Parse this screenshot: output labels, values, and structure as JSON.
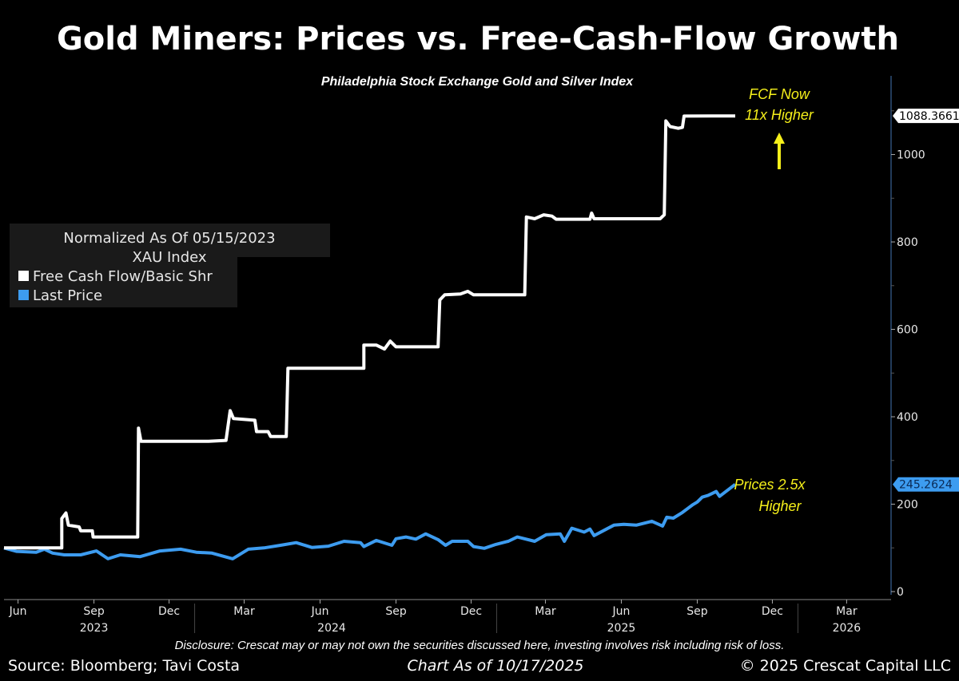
{
  "chart_data": {
    "type": "line",
    "title": "Gold Miners: Prices vs. Free-Cash-Flow Growth",
    "subtitle": "Philadelphia Stock Exchange Gold and Silver Index",
    "legend": {
      "placement": "left",
      "header_1": "Normalized As Of 05/15/2023",
      "header_2": "XAU Index"
    },
    "xlim": [
      "2023-05-15",
      "2026-04-19"
    ],
    "ylim": [
      0,
      1180
    ],
    "grid": false,
    "y_ticks": [
      0,
      200,
      400,
      600,
      800,
      1000
    ],
    "y_tick_labels": [
      "0",
      "200",
      "400",
      "600",
      "800",
      "1000"
    ],
    "x_ticks": [
      {
        "label": "Jun",
        "date": "2023-06-01"
      },
      {
        "label": "Sep",
        "date": "2023-09-01"
      },
      {
        "label": "Dec",
        "date": "2023-12-01"
      },
      {
        "label": "Mar",
        "date": "2024-03-01"
      },
      {
        "label": "Jun",
        "date": "2024-06-01"
      },
      {
        "label": "Sep",
        "date": "2024-09-01"
      },
      {
        "label": "Dec",
        "date": "2024-12-01"
      },
      {
        "label": "Mar",
        "date": "2025-03-01"
      },
      {
        "label": "Jun",
        "date": "2025-06-01"
      },
      {
        "label": "Sep",
        "date": "2025-09-01"
      },
      {
        "label": "Dec",
        "date": "2025-12-01"
      },
      {
        "label": "Mar",
        "date": "2026-03-01"
      }
    ],
    "year_labels": [
      {
        "label": "2023",
        "date": "2023-09-01"
      },
      {
        "label": "2024",
        "date": "2024-06-15"
      },
      {
        "label": "2025",
        "date": "2025-06-01"
      },
      {
        "label": "2026",
        "date": "2026-03-01"
      }
    ],
    "year_boundaries": [
      "2024-01-01",
      "2025-01-01",
      "2026-01-01"
    ],
    "series": [
      {
        "name": "Free Cash Flow/Basic Shr",
        "color": "#ffffff",
        "last_value_label": "1088.3661",
        "points": [
          [
            "2023-05-15",
            100
          ],
          [
            "2023-07-24",
            100
          ],
          [
            "2023-07-24",
            167
          ],
          [
            "2023-07-29",
            180
          ],
          [
            "2023-08-01",
            152
          ],
          [
            "2023-08-14",
            148
          ],
          [
            "2023-08-16",
            139
          ],
          [
            "2023-08-30",
            139
          ],
          [
            "2023-08-31",
            125
          ],
          [
            "2023-10-24",
            125
          ],
          [
            "2023-10-25",
            374
          ],
          [
            "2023-10-28",
            344
          ],
          [
            "2024-01-18",
            344
          ],
          [
            "2024-02-08",
            346
          ],
          [
            "2024-02-13",
            414
          ],
          [
            "2024-02-17",
            396
          ],
          [
            "2024-03-14",
            392
          ],
          [
            "2024-03-16",
            366
          ],
          [
            "2024-03-30",
            366
          ],
          [
            "2024-04-02",
            355
          ],
          [
            "2024-04-21",
            355
          ],
          [
            "2024-04-23",
            511
          ],
          [
            "2024-07-24",
            511
          ],
          [
            "2024-07-24",
            564
          ],
          [
            "2024-08-08",
            564
          ],
          [
            "2024-08-18",
            555
          ],
          [
            "2024-08-25",
            573
          ],
          [
            "2024-09-01",
            560
          ],
          [
            "2024-10-22",
            560
          ],
          [
            "2024-10-24",
            667
          ],
          [
            "2024-10-30",
            679
          ],
          [
            "2024-11-18",
            681
          ],
          [
            "2024-11-27",
            687
          ],
          [
            "2024-12-04",
            679
          ],
          [
            "2025-02-04",
            679
          ],
          [
            "2025-02-06",
            857
          ],
          [
            "2025-02-16",
            853
          ],
          [
            "2025-02-27",
            862
          ],
          [
            "2025-03-09",
            859
          ],
          [
            "2025-03-14",
            852
          ],
          [
            "2025-04-24",
            852
          ],
          [
            "2025-04-26",
            866
          ],
          [
            "2025-04-29",
            853
          ],
          [
            "2025-07-18",
            853
          ],
          [
            "2025-07-23",
            862
          ],
          [
            "2025-07-25",
            1077
          ],
          [
            "2025-07-30",
            1064
          ],
          [
            "2025-08-09",
            1060
          ],
          [
            "2025-08-14",
            1062
          ],
          [
            "2025-08-16",
            1088
          ],
          [
            "2025-10-17",
            1088.3661
          ]
        ]
      },
      {
        "name": "Last Price",
        "color": "#3d9cf0",
        "last_value_label": "245.2624",
        "points": [
          [
            "2023-05-15",
            100
          ],
          [
            "2023-05-30",
            92
          ],
          [
            "2023-06-23",
            90
          ],
          [
            "2023-07-03",
            97
          ],
          [
            "2023-07-13",
            88
          ],
          [
            "2023-07-27",
            84
          ],
          [
            "2023-08-16",
            84
          ],
          [
            "2023-09-04",
            93
          ],
          [
            "2023-09-18",
            75
          ],
          [
            "2023-10-03",
            84
          ],
          [
            "2023-10-27",
            80
          ],
          [
            "2023-11-20",
            93
          ],
          [
            "2023-12-15",
            97
          ],
          [
            "2024-01-03",
            90
          ],
          [
            "2024-01-22",
            88
          ],
          [
            "2024-02-16",
            75
          ],
          [
            "2024-03-06",
            97
          ],
          [
            "2024-03-25",
            100
          ],
          [
            "2024-04-14",
            106
          ],
          [
            "2024-05-03",
            112
          ],
          [
            "2024-05-22",
            101
          ],
          [
            "2024-06-11",
            104
          ],
          [
            "2024-06-30",
            115
          ],
          [
            "2024-07-20",
            112
          ],
          [
            "2024-07-24",
            103
          ],
          [
            "2024-08-08",
            117
          ],
          [
            "2024-08-27",
            106
          ],
          [
            "2024-09-01",
            121
          ],
          [
            "2024-09-13",
            125
          ],
          [
            "2024-09-25",
            120
          ],
          [
            "2024-10-07",
            132
          ],
          [
            "2024-10-22",
            119
          ],
          [
            "2024-10-31",
            106
          ],
          [
            "2024-11-08",
            115
          ],
          [
            "2024-11-27",
            115
          ],
          [
            "2024-12-04",
            103
          ],
          [
            "2024-12-17",
            99
          ],
          [
            "2024-12-31",
            108
          ],
          [
            "2025-01-15",
            115
          ],
          [
            "2025-01-26",
            125
          ],
          [
            "2025-02-16",
            115
          ],
          [
            "2025-03-02",
            130
          ],
          [
            "2025-03-19",
            132
          ],
          [
            "2025-03-24",
            115
          ],
          [
            "2025-04-02",
            145
          ],
          [
            "2025-04-17",
            136
          ],
          [
            "2025-04-24",
            143
          ],
          [
            "2025-04-29",
            128
          ],
          [
            "2025-05-14",
            143
          ],
          [
            "2025-05-23",
            152
          ],
          [
            "2025-06-04",
            154
          ],
          [
            "2025-06-19",
            152
          ],
          [
            "2025-07-08",
            161
          ],
          [
            "2025-07-21",
            150
          ],
          [
            "2025-07-26",
            170
          ],
          [
            "2025-08-03",
            168
          ],
          [
            "2025-08-14",
            181
          ],
          [
            "2025-08-26",
            198
          ],
          [
            "2025-09-01",
            205
          ],
          [
            "2025-09-07",
            216
          ],
          [
            "2025-09-14",
            220
          ],
          [
            "2025-09-24",
            229
          ],
          [
            "2025-09-28",
            218
          ],
          [
            "2025-10-17",
            245.2624
          ]
        ]
      }
    ],
    "annotations": {
      "fcf_line1": "FCF Now",
      "fcf_line2": "11x Higher",
      "fcf_arrow": "up-arrow",
      "price_line1": "Prices 2.5x",
      "price_line2": "Higher",
      "color": "#f5ef1a"
    }
  },
  "footer": {
    "disclosure": "Disclosure: Crescat may or may not own the securities discussed here, investing involves risk including risk of loss.",
    "source": "Source: Bloomberg; Tavi Costa",
    "chart_as_of": "Chart As of 10/17/2025",
    "copyright": "© 2025 Crescat Capital LLC"
  }
}
